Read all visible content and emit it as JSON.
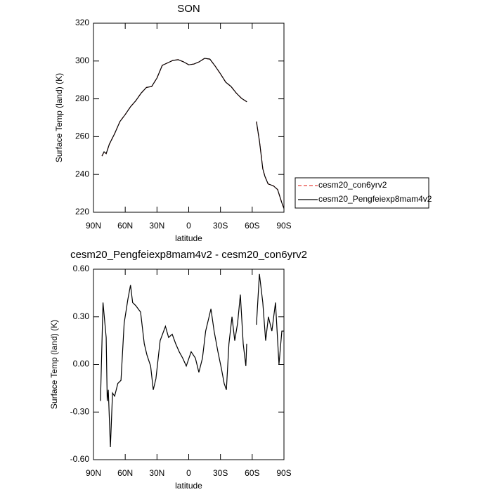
{
  "chart_data": [
    {
      "type": "line",
      "title": "SON",
      "xlabel": "latitude",
      "ylabel": "Surface Temp (land) (K)",
      "x": [
        82,
        80,
        78,
        75,
        70,
        65,
        60,
        55,
        50,
        45,
        40,
        35,
        30,
        25,
        20,
        15,
        10,
        5,
        0,
        -5,
        -10,
        -15,
        -20,
        -25,
        -30,
        -35,
        -40,
        -45,
        -50,
        -55,
        -60,
        -64,
        -67,
        -70,
        -72,
        -75,
        -80,
        -84,
        -88,
        -90
      ],
      "series": [
        {
          "name": "cesm20_con6yrv2",
          "color": "#e8403a",
          "linestyle": "dashed",
          "values": [
            249.7,
            252,
            251,
            256,
            261.6,
            268,
            271.7,
            275.8,
            279,
            283,
            286,
            286.5,
            291,
            297.7,
            299,
            300.3,
            300.7,
            299.6,
            298,
            298.4,
            299.6,
            301.4,
            301,
            297.3,
            293.2,
            288.8,
            286.5,
            283,
            280.2,
            278.4,
            null,
            268,
            257,
            243,
            239,
            235,
            234,
            232,
            225,
            222
          ]
        },
        {
          "name": "cesm20_Pengfeiexp8mam4v2",
          "color": "#000000",
          "linestyle": "solid",
          "values": [
            249.7,
            252,
            251,
            256,
            261.6,
            268,
            271.7,
            275.8,
            279,
            283,
            286,
            286.5,
            291,
            297.7,
            299,
            300.3,
            300.7,
            299.6,
            298,
            298.4,
            299.6,
            301.4,
            301,
            297.3,
            293.2,
            288.8,
            286.5,
            283,
            280.2,
            278.4,
            null,
            268,
            257,
            243,
            239,
            235,
            234,
            232,
            225,
            222
          ]
        }
      ],
      "xlim": [
        90,
        -90
      ],
      "xticks": [
        {
          "value": 90,
          "label": "90N"
        },
        {
          "value": 60,
          "label": "60N"
        },
        {
          "value": 30,
          "label": "30N"
        },
        0,
        {
          "value": -30,
          "label": "30S"
        },
        {
          "value": -60,
          "label": "60S"
        },
        {
          "value": -90,
          "label": "90S"
        }
      ],
      "ylim": [
        220,
        320
      ],
      "yticks": [
        220,
        240,
        260,
        280,
        300,
        320
      ],
      "legend": "right"
    },
    {
      "type": "line",
      "title": "cesm20_Pengfeiexp8mam4v2 - cesm20_con6yrv2",
      "xlabel": "latitude",
      "ylabel": "Surface Temp (land) (K)",
      "x": [
        83.4,
        81,
        78,
        77,
        76,
        74,
        72,
        70,
        67,
        64,
        61,
        57.5,
        55,
        53,
        50,
        45.5,
        42,
        39.5,
        36,
        33.5,
        31,
        27,
        22,
        19,
        15.6,
        12.3,
        9,
        5.7,
        2.3,
        -2.3,
        -6.3,
        -9.6,
        -13,
        -16,
        -21,
        -24,
        -27.6,
        -31,
        -33.5,
        -35.6,
        -38,
        -40.9,
        -43.5,
        -46.2,
        -48.8,
        -51.5,
        -54,
        -54.8,
        -60,
        -64,
        -66.8,
        -70,
        -72.7,
        -75.3,
        -78.6,
        -82,
        -85.3,
        -88,
        -90
      ],
      "values": [
        -0.23,
        0.39,
        0.17,
        -0.23,
        -0.16,
        -0.52,
        -0.18,
        -0.2,
        -0.12,
        -0.1,
        0.26,
        0.41,
        0.5,
        0.39,
        0.37,
        0.33,
        0.13,
        0.06,
        -0.01,
        -0.16,
        -0.09,
        0.15,
        0.24,
        0.17,
        0.19,
        0.13,
        0.08,
        0.04,
        -0.01,
        0.08,
        0.04,
        -0.05,
        0.04,
        0.21,
        0.35,
        0.21,
        0.08,
        -0.03,
        -0.12,
        -0.16,
        0.13,
        0.3,
        0.15,
        0.26,
        0.44,
        0.13,
        -0.01,
        0.13,
        null,
        0.25,
        0.57,
        0.39,
        0.15,
        0.3,
        0.21,
        0.39,
        0,
        0.21,
        0.21
      ],
      "color": "#000000",
      "xlim": [
        90,
        -90
      ],
      "xticks": [
        {
          "value": 90,
          "label": "90N"
        },
        {
          "value": 60,
          "label": "60N"
        },
        {
          "value": 30,
          "label": "30N"
        },
        0,
        {
          "value": -30,
          "label": "30S"
        },
        {
          "value": -60,
          "label": "60S"
        },
        {
          "value": -90,
          "label": "90S"
        }
      ],
      "ylim": [
        -0.6,
        0.6
      ],
      "yticks": [
        {
          "value": -0.6,
          "label": "-0.60"
        },
        {
          "value": -0.3,
          "label": "-0.30"
        },
        {
          "value": 0,
          "label": "0.00"
        },
        {
          "value": 0.3,
          "label": "0.30"
        },
        {
          "value": 0.6,
          "label": "0.60"
        }
      ]
    }
  ]
}
